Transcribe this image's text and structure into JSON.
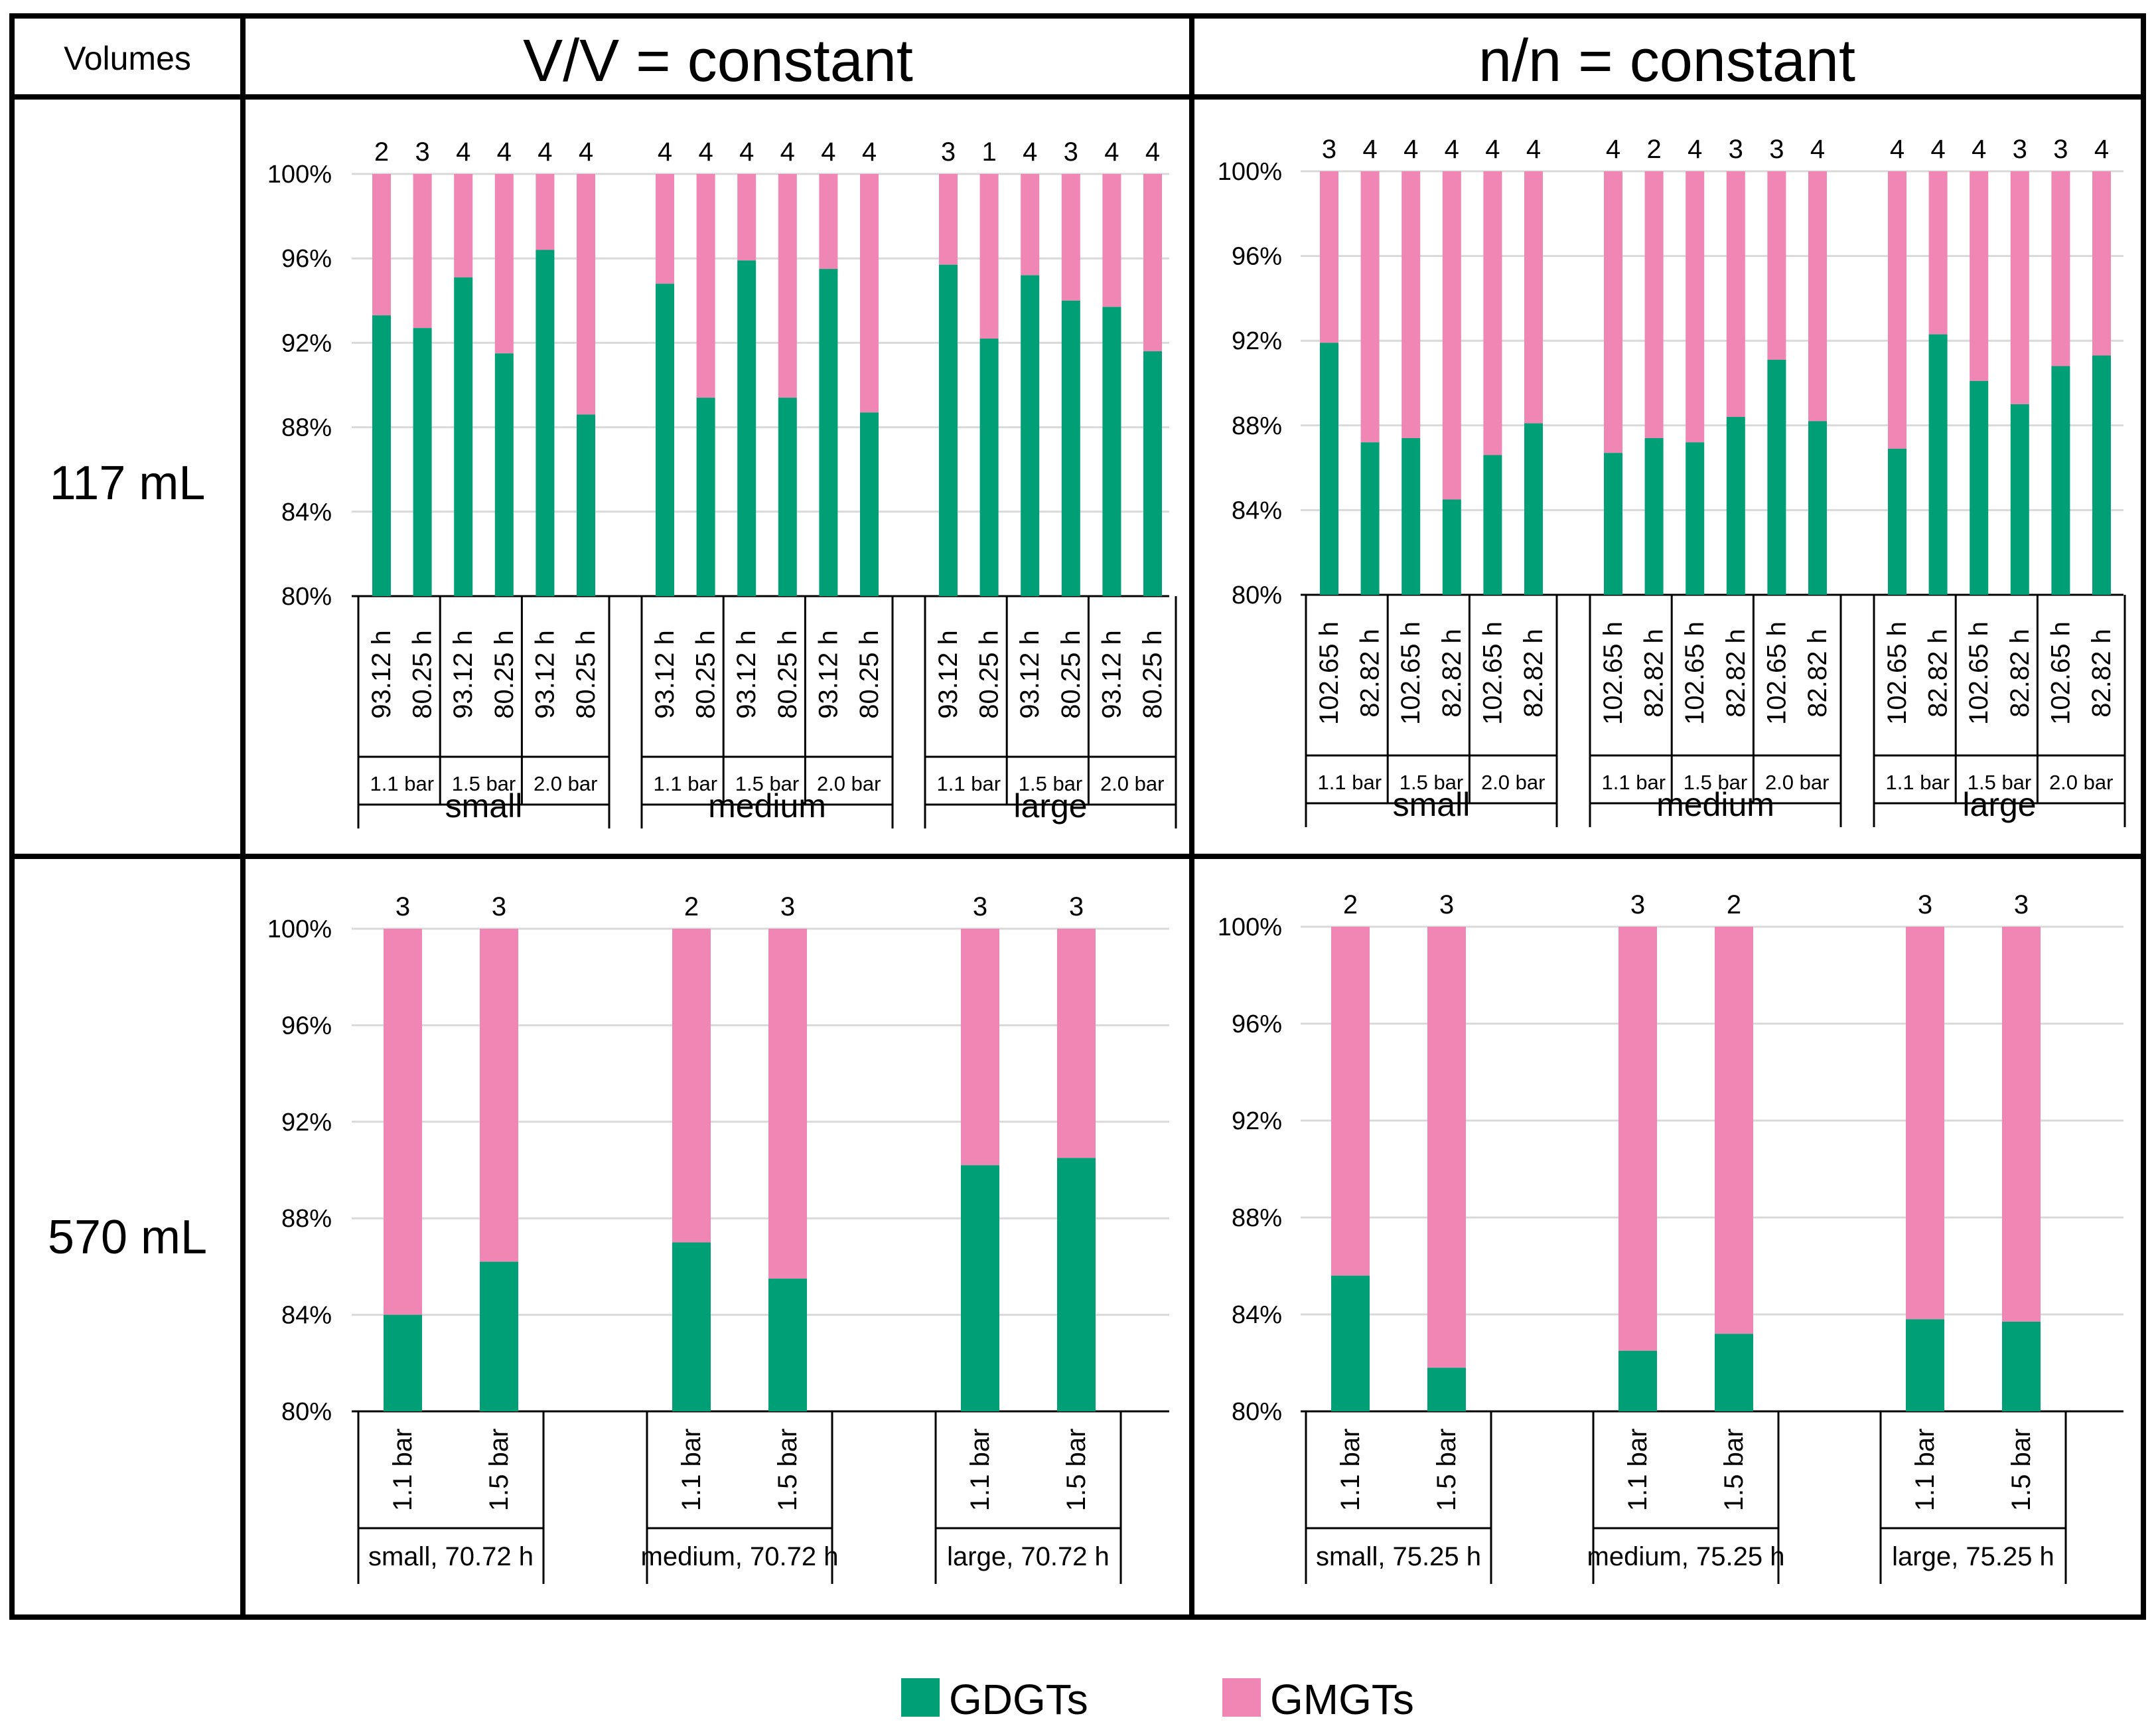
{
  "header": {
    "corner": "Volumes",
    "col1": "V/V = constant",
    "col2": "n/n = constant",
    "row1": "117 mL",
    "row2": "570 mL"
  },
  "legend": [
    {
      "name": "GDGTs",
      "color": "#009f75"
    },
    {
      "name": "GMGTs",
      "color": "#ef86b3"
    }
  ],
  "chart_data": [
    {
      "type": "bar",
      "stacked": true,
      "title": "V/V = constant, 117 mL",
      "ylim": [
        80,
        100
      ],
      "yticks": [
        "80%",
        "84%",
        "88%",
        "92%",
        "96%",
        "100%"
      ],
      "groups": [
        "small",
        "medium",
        "large"
      ],
      "pressures": [
        "1.1 bar",
        "1.5 bar",
        "2.0 bar"
      ],
      "times": [
        "93.12 h",
        "80.25 h"
      ],
      "series": [
        {
          "name": "GDGTs",
          "values": [
            [
              93.3,
              92.7,
              95.1,
              91.5,
              96.4,
              88.6
            ],
            [
              94.8,
              89.4,
              95.9,
              89.4,
              95.5,
              88.7
            ],
            [
              95.7,
              92.2,
              95.2,
              94.0,
              93.7,
              91.6
            ]
          ]
        },
        {
          "name": "GMGTs",
          "values": [
            [
              6.7,
              7.3,
              4.9,
              8.5,
              3.6,
              11.4
            ],
            [
              5.2,
              10.6,
              4.1,
              10.6,
              4.5,
              11.3
            ],
            [
              4.3,
              7.8,
              4.8,
              6.0,
              6.3,
              8.4
            ]
          ]
        }
      ],
      "counts": [
        [
          "2",
          "3",
          "4",
          "4",
          "4",
          "4"
        ],
        [
          "4",
          "4",
          "4",
          "4",
          "4",
          "4"
        ],
        [
          "3",
          "1",
          "4",
          "3",
          "4",
          "4"
        ]
      ]
    },
    {
      "type": "bar",
      "stacked": true,
      "title": "n/n = constant, 117 mL",
      "ylim": [
        80,
        100
      ],
      "yticks": [
        "80%",
        "84%",
        "88%",
        "92%",
        "96%",
        "100%"
      ],
      "groups": [
        "small",
        "medium",
        "large"
      ],
      "pressures": [
        "1.1 bar",
        "1.5 bar",
        "2.0 bar"
      ],
      "times": [
        "102.65 h",
        "82.82 h"
      ],
      "series": [
        {
          "name": "GDGTs",
          "values": [
            [
              91.9,
              87.2,
              87.4,
              84.5,
              86.6,
              88.1
            ],
            [
              86.7,
              87.4,
              87.2,
              88.4,
              91.1,
              88.2
            ],
            [
              86.9,
              92.3,
              90.1,
              89.0,
              90.8,
              91.3
            ]
          ]
        },
        {
          "name": "GMGTs",
          "values": [
            [
              8.1,
              12.8,
              12.6,
              15.5,
              13.4,
              11.9
            ],
            [
              13.3,
              12.6,
              12.8,
              11.6,
              8.9,
              11.8
            ],
            [
              13.1,
              7.7,
              9.9,
              11.0,
              9.2,
              8.7
            ]
          ]
        }
      ],
      "counts": [
        [
          "3",
          "4",
          "4",
          "4",
          "4",
          "4"
        ],
        [
          "4",
          "2",
          "4",
          "3",
          "3",
          "4"
        ],
        [
          "4",
          "4",
          "4",
          "3",
          "3",
          "4"
        ]
      ]
    },
    {
      "type": "bar",
      "stacked": true,
      "title": "V/V = constant, 570 mL",
      "ylim": [
        80,
        100
      ],
      "yticks": [
        "80%",
        "84%",
        "88%",
        "92%",
        "96%",
        "100%"
      ],
      "groups": [
        "small, 70.72 h",
        "medium, 70.72 h",
        "large, 70.72 h"
      ],
      "pressures": [
        "1.1 bar",
        "1.5 bar"
      ],
      "series": [
        {
          "name": "GDGTs",
          "values": [
            [
              84.0,
              86.2
            ],
            [
              87.0,
              85.5
            ],
            [
              90.2,
              90.5
            ]
          ]
        },
        {
          "name": "GMGTs",
          "values": [
            [
              16.0,
              13.8
            ],
            [
              13.0,
              14.5
            ],
            [
              9.8,
              9.5
            ]
          ]
        }
      ],
      "counts": [
        [
          "3",
          "3"
        ],
        [
          "2",
          "3"
        ],
        [
          "3",
          "3"
        ]
      ]
    },
    {
      "type": "bar",
      "stacked": true,
      "title": "n/n = constant, 570 mL",
      "ylim": [
        80,
        100
      ],
      "yticks": [
        "80%",
        "84%",
        "88%",
        "92%",
        "96%",
        "100%"
      ],
      "groups": [
        "small, 75.25 h",
        "medium, 75.25 h",
        "large, 75.25 h"
      ],
      "pressures": [
        "1.1 bar",
        "1.5 bar"
      ],
      "series": [
        {
          "name": "GDGTs",
          "values": [
            [
              85.6,
              81.8
            ],
            [
              82.5,
              83.2
            ],
            [
              83.8,
              83.7
            ]
          ]
        },
        {
          "name": "GMGTs",
          "values": [
            [
              14.4,
              18.2
            ],
            [
              17.5,
              16.8
            ],
            [
              16.2,
              16.3
            ]
          ]
        }
      ],
      "counts": [
        [
          "2",
          "3"
        ],
        [
          "3",
          "2"
        ],
        [
          "3",
          "3"
        ]
      ]
    }
  ]
}
